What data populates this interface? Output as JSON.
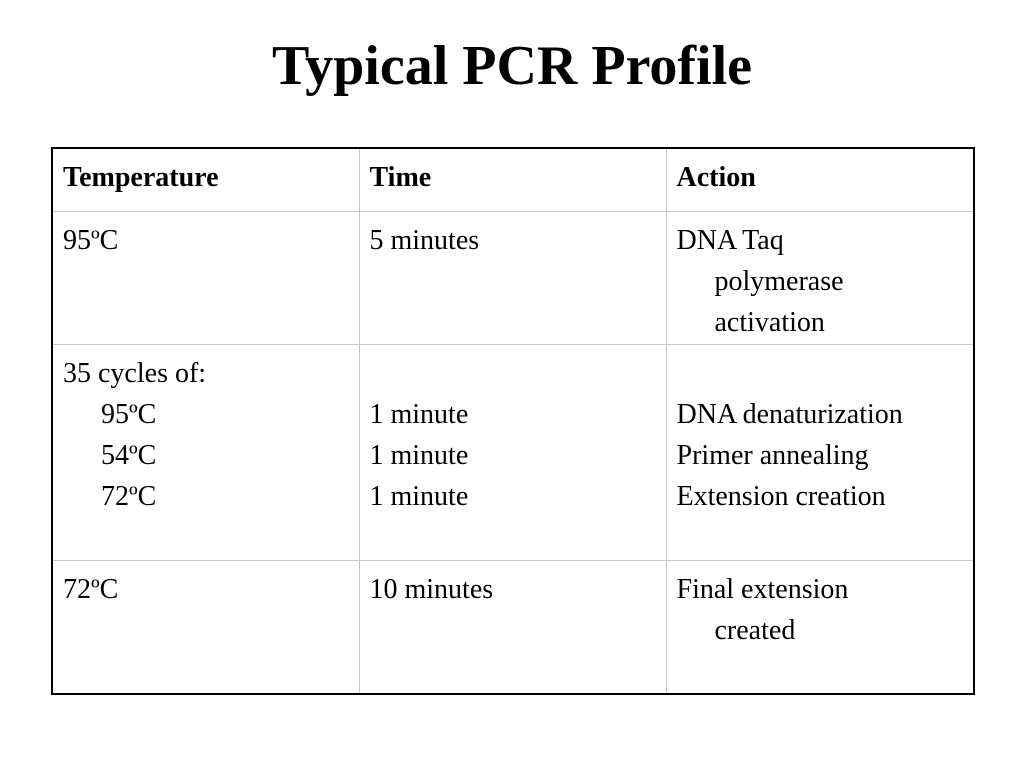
{
  "slide": {
    "title": "Typical PCR Profile"
  },
  "table": {
    "headers": [
      "Temperature",
      "Time",
      "Action"
    ],
    "rows": [
      {
        "temperature": [
          "95ºC"
        ],
        "time": [
          "5 minutes"
        ],
        "action": [
          "DNA Taq",
          "polymerase",
          "activation"
        ]
      },
      {
        "temperature": [
          "35 cycles of:",
          "95ºC",
          "54ºC",
          "72ºC"
        ],
        "time": [
          "1 minute",
          "1 minute",
          "1 minute"
        ],
        "action": [
          "DNA denaturization",
          "Primer annealing",
          "Extension creation"
        ]
      },
      {
        "temperature": [
          "72ºC"
        ],
        "time": [
          "10 minutes"
        ],
        "action": [
          "Final extension",
          "created"
        ]
      }
    ]
  }
}
